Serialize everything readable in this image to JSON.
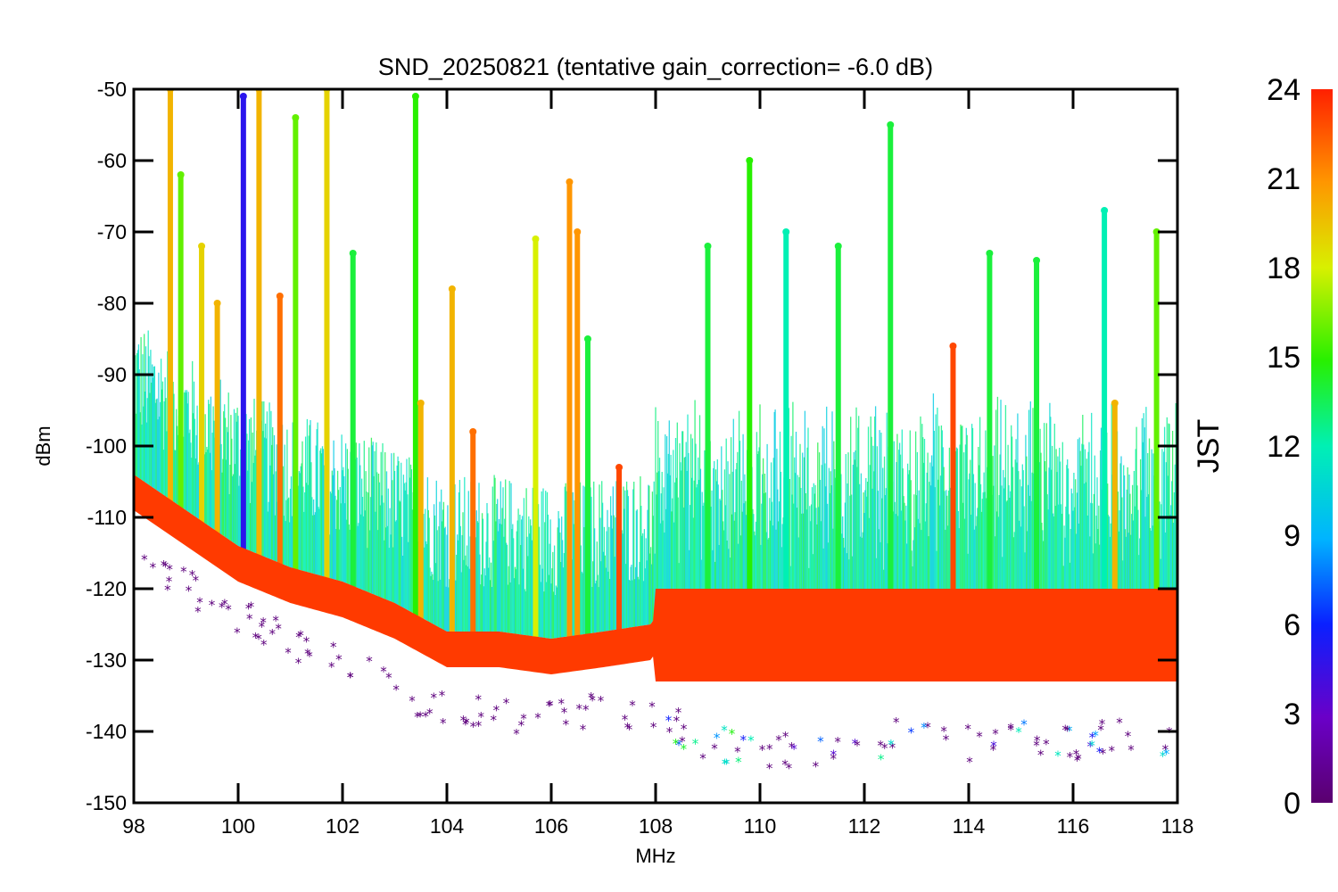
{
  "chart_data": {
    "type": "scatter",
    "title": "SND_20250821 (tentative gain_correction= -6.0 dB)",
    "xlabel": "MHz",
    "ylabel": "dBm",
    "xlim": [
      98,
      118
    ],
    "ylim": [
      -150,
      -50
    ],
    "x_ticks": [
      98,
      100,
      102,
      104,
      106,
      108,
      110,
      112,
      114,
      116,
      118
    ],
    "y_ticks": [
      -50,
      -60,
      -70,
      -80,
      -90,
      -100,
      -110,
      -120,
      -130,
      -140,
      -150
    ],
    "colorbar": {
      "label": "JST",
      "range": [
        0,
        24
      ],
      "ticks": [
        0,
        3,
        6,
        9,
        12,
        15,
        18,
        21,
        24
      ],
      "colormap": "rainbow (purple to red)"
    },
    "noise_floor": [
      {
        "x": 98.0,
        "y": -106
      },
      {
        "x": 99.0,
        "y": -111
      },
      {
        "x": 100.0,
        "y": -116
      },
      {
        "x": 101.0,
        "y": -119
      },
      {
        "x": 102.0,
        "y": -121
      },
      {
        "x": 103.0,
        "y": -124
      },
      {
        "x": 104.0,
        "y": -128
      },
      {
        "x": 105.0,
        "y": -128
      },
      {
        "x": 106.0,
        "y": -129
      },
      {
        "x": 107.0,
        "y": -128
      },
      {
        "x": 107.9,
        "y": -127
      },
      {
        "x": 108.0,
        "y": -126
      },
      {
        "x": 118.0,
        "y": -126
      }
    ],
    "min_envelope": [
      {
        "x": 98.0,
        "y": -113
      },
      {
        "x": 99.0,
        "y": -118
      },
      {
        "x": 100.0,
        "y": -122
      },
      {
        "x": 101.0,
        "y": -126
      },
      {
        "x": 102.0,
        "y": -129
      },
      {
        "x": 103.0,
        "y": -132
      },
      {
        "x": 104.0,
        "y": -136
      },
      {
        "x": 105.0,
        "y": -136
      },
      {
        "x": 106.0,
        "y": -136
      },
      {
        "x": 107.0,
        "y": -135
      },
      {
        "x": 108.0,
        "y": -136
      },
      {
        "x": 109.0,
        "y": -140
      },
      {
        "x": 110.0,
        "y": -141
      },
      {
        "x": 111.0,
        "y": -141
      },
      {
        "x": 112.0,
        "y": -140
      },
      {
        "x": 113.0,
        "y": -139
      },
      {
        "x": 114.0,
        "y": -140
      },
      {
        "x": 115.0,
        "y": -139
      },
      {
        "x": 116.0,
        "y": -140
      },
      {
        "x": 117.0,
        "y": -139
      },
      {
        "x": 118.0,
        "y": -140
      }
    ],
    "peaks": [
      {
        "x": 98.7,
        "peak_dBm": -50,
        "jst": 20
      },
      {
        "x": 98.9,
        "peak_dBm": -62,
        "jst": 16
      },
      {
        "x": 99.3,
        "peak_dBm": -72,
        "jst": 19
      },
      {
        "x": 99.6,
        "peak_dBm": -80,
        "jst": 20
      },
      {
        "x": 100.1,
        "peak_dBm": -51,
        "jst": 5
      },
      {
        "x": 100.4,
        "peak_dBm": -50,
        "jst": 20
      },
      {
        "x": 100.8,
        "peak_dBm": -79,
        "jst": 22
      },
      {
        "x": 101.1,
        "peak_dBm": -54,
        "jst": 16
      },
      {
        "x": 101.7,
        "peak_dBm": -50,
        "jst": 19
      },
      {
        "x": 102.2,
        "peak_dBm": -73,
        "jst": 14
      },
      {
        "x": 103.4,
        "peak_dBm": -51,
        "jst": 15
      },
      {
        "x": 103.5,
        "peak_dBm": -94,
        "jst": 20
      },
      {
        "x": 104.1,
        "peak_dBm": -78,
        "jst": 20
      },
      {
        "x": 104.5,
        "peak_dBm": -98,
        "jst": 22
      },
      {
        "x": 105.7,
        "peak_dBm": -71,
        "jst": 18
      },
      {
        "x": 106.35,
        "peak_dBm": -63,
        "jst": 21
      },
      {
        "x": 106.5,
        "peak_dBm": -70,
        "jst": 21
      },
      {
        "x": 106.7,
        "peak_dBm": -85,
        "jst": 14
      },
      {
        "x": 107.3,
        "peak_dBm": -103,
        "jst": 23
      },
      {
        "x": 109.0,
        "peak_dBm": -72,
        "jst": 14
      },
      {
        "x": 109.8,
        "peak_dBm": -60,
        "jst": 15
      },
      {
        "x": 110.5,
        "peak_dBm": -70,
        "jst": 12
      },
      {
        "x": 111.5,
        "peak_dBm": -72,
        "jst": 14
      },
      {
        "x": 112.5,
        "peak_dBm": -55,
        "jst": 14
      },
      {
        "x": 113.7,
        "peak_dBm": -86,
        "jst": 23
      },
      {
        "x": 114.4,
        "peak_dBm": -73,
        "jst": 14
      },
      {
        "x": 115.3,
        "peak_dBm": -74,
        "jst": 14
      },
      {
        "x": 116.6,
        "peak_dBm": -67,
        "jst": 12
      },
      {
        "x": 116.8,
        "peak_dBm": -94,
        "jst": 20
      },
      {
        "x": 117.6,
        "peak_dBm": -70,
        "jst": 16
      }
    ]
  }
}
